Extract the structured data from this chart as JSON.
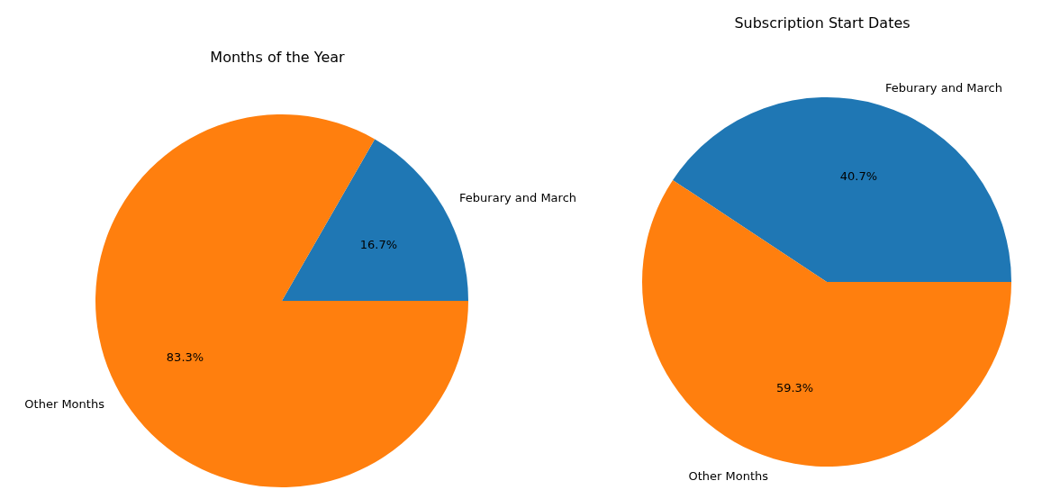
{
  "chart_data": [
    {
      "type": "pie",
      "title": "Months of the Year",
      "categories": [
        "Feburary and March",
        "Other Months"
      ],
      "values": [
        16.7,
        83.3
      ],
      "colors": [
        "#1f77b4",
        "#ff7f0e"
      ],
      "value_labels": [
        "16.7%",
        "83.3%"
      ]
    },
    {
      "type": "pie",
      "title": "Subscription Start Dates",
      "categories": [
        "Feburary and March",
        "Other Months"
      ],
      "values": [
        40.7,
        59.3
      ],
      "colors": [
        "#1f77b4",
        "#ff7f0e"
      ],
      "value_labels": [
        "40.7%",
        "59.3%"
      ]
    }
  ]
}
